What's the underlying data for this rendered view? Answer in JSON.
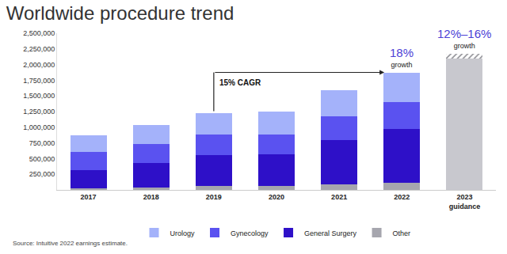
{
  "chart_data": {
    "type": "bar",
    "title": "Worldwide procedure trend",
    "source": "Source: Intuitive 2022 earnings estimate.",
    "categories": [
      "2017",
      "2018",
      "2019",
      "2020",
      "2021",
      "2022",
      "2023 guidance"
    ],
    "stacked": true,
    "grid": false,
    "legend": "bottom",
    "ylim": [
      0,
      2500000
    ],
    "yticks": [
      {
        "value": 250000,
        "label": "250,000"
      },
      {
        "value": 500000,
        "label": "500,000"
      },
      {
        "value": 750000,
        "label": "750,000"
      },
      {
        "value": 1000000,
        "label": "1,000,000"
      },
      {
        "value": 1250000,
        "label": "1,250,000"
      },
      {
        "value": 1500000,
        "label": "1,500,000"
      },
      {
        "value": 1750000,
        "label": "1,750,000"
      },
      {
        "value": 2000000,
        "label": "2,000,000"
      },
      {
        "value": 2250000,
        "label": "2,250,000"
      },
      {
        "value": 2500000,
        "label": "2,500,000"
      }
    ],
    "series": [
      {
        "name": "Other",
        "color": "#a6a6ae",
        "values": [
          25000,
          40000,
          60000,
          60000,
          90000,
          110000,
          null
        ]
      },
      {
        "name": "General Surgery",
        "color": "#2e10c8",
        "values": [
          295000,
          390000,
          490000,
          510000,
          700000,
          860000,
          null
        ]
      },
      {
        "name": "Gynecology",
        "color": "#5a52f0",
        "values": [
          280000,
          300000,
          330000,
          320000,
          385000,
          430000,
          null
        ]
      },
      {
        "name": "Urology",
        "color": "#a4b2fa",
        "values": [
          275000,
          305000,
          350000,
          355000,
          420000,
          475000,
          null
        ]
      },
      {
        "color": "#c8c8ce",
        "values": [
          null,
          null,
          null,
          null,
          null,
          null,
          2100000
        ]
      },
      {
        "color": "#c8c8ce",
        "marker": "hatch",
        "values": [
          null,
          null,
          null,
          null,
          null,
          null,
          75000
        ]
      }
    ],
    "annotations": [
      {
        "text": "15% CAGR",
        "from": "2019",
        "to": "2022"
      },
      {
        "text": "18%",
        "note": "growth",
        "category": "2022"
      },
      {
        "text": "12%–16%",
        "note": "growth",
        "category": "2023 guidance"
      }
    ]
  }
}
